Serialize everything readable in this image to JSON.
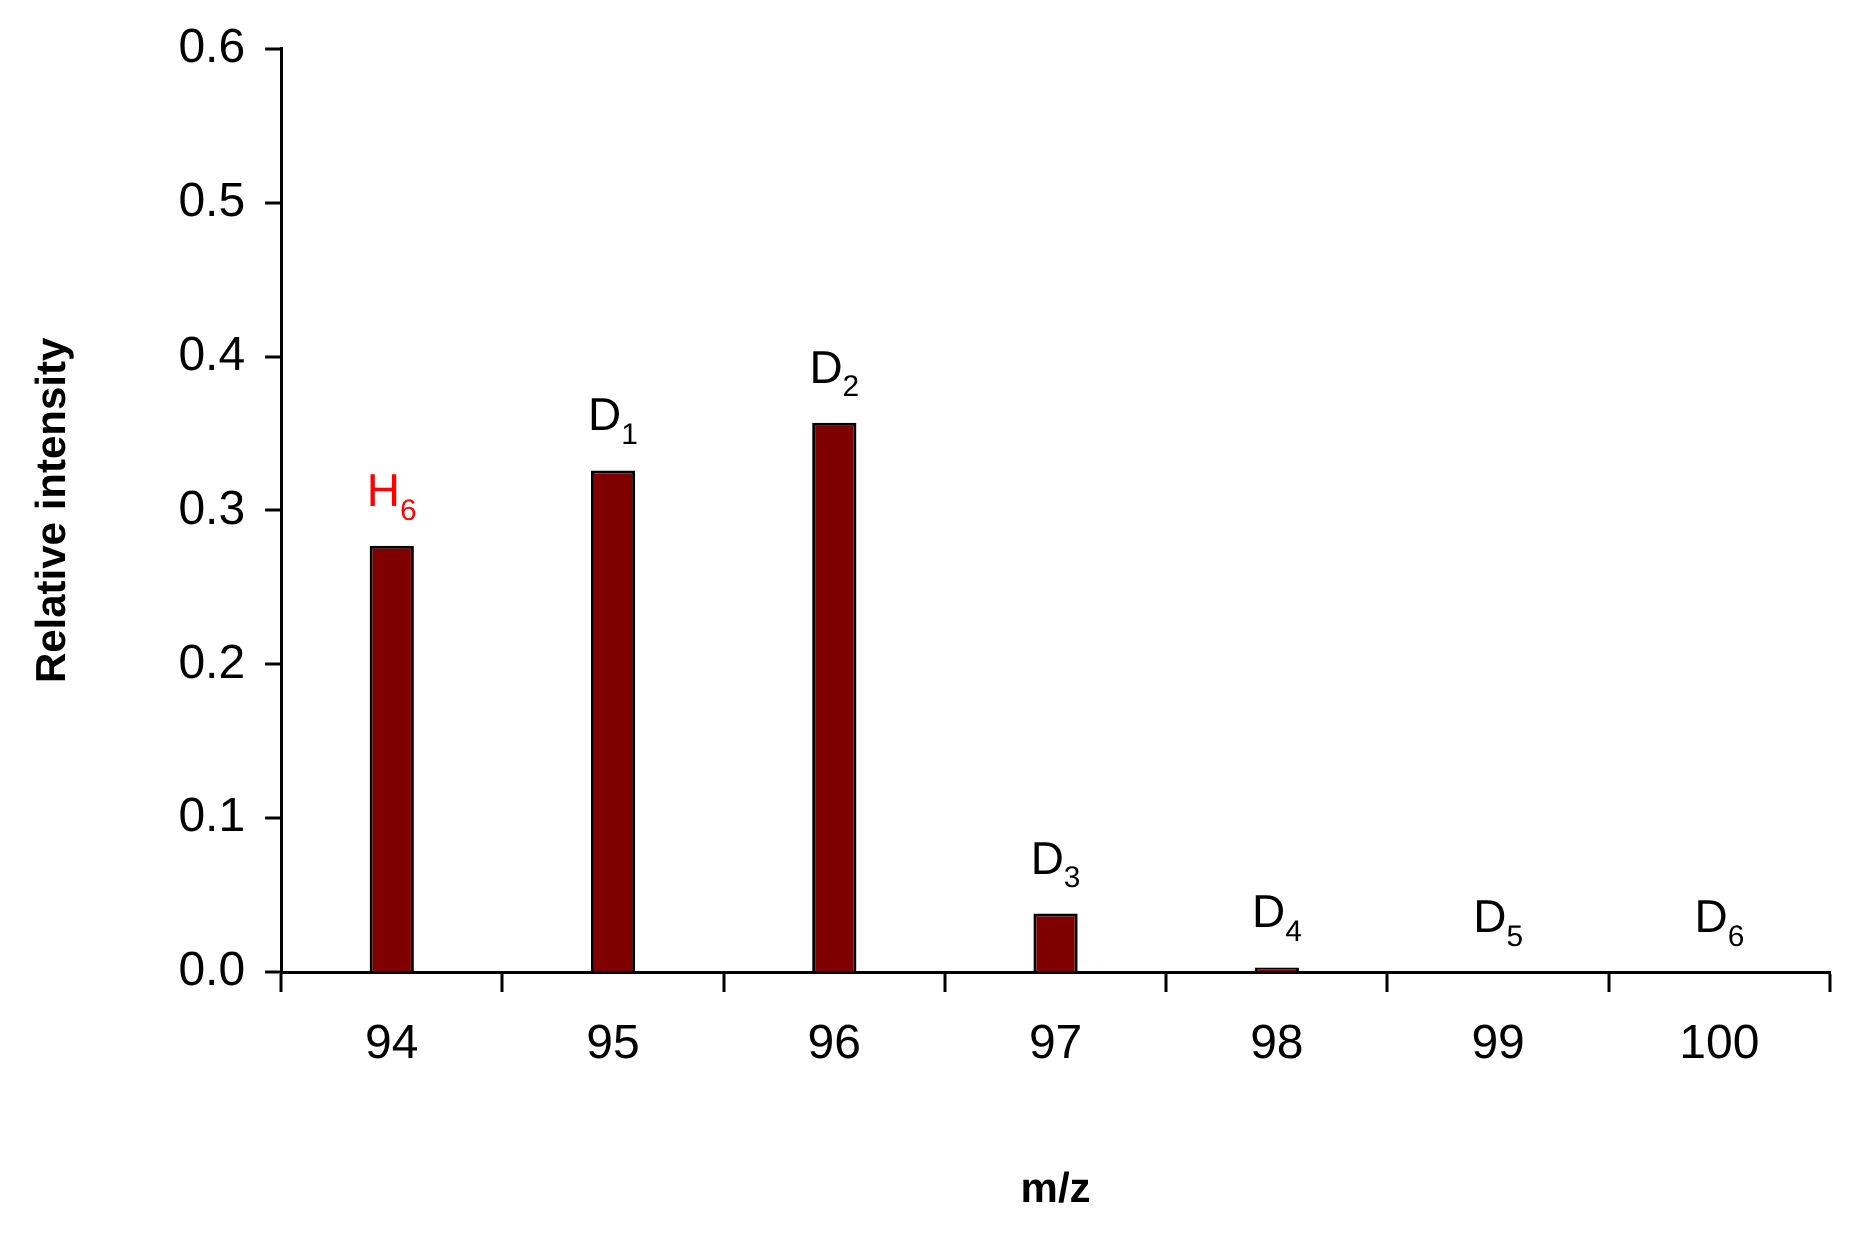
{
  "chart_data": {
    "type": "bar",
    "xlabel": "m/z",
    "ylabel": "Relative intensity",
    "categories": [
      "94",
      "95",
      "96",
      "97",
      "98",
      "99",
      "100"
    ],
    "values": [
      0.277,
      0.326,
      0.357,
      0.038,
      0.003,
      0,
      0
    ],
    "color": "#800000",
    "ylim": [
      0,
      0.6
    ],
    "yticks": [
      {
        "value": 0,
        "label": "0.0"
      },
      {
        "value": 0.1,
        "label": "0.1"
      },
      {
        "value": 0.2,
        "label": "0.2"
      },
      {
        "value": 0.3,
        "label": "0.3"
      },
      {
        "value": 0.4,
        "label": "0.4"
      },
      {
        "value": 0.5,
        "label": "0.5"
      },
      {
        "value": 0.6,
        "label": "0.6"
      }
    ],
    "grid": false,
    "legend": false,
    "annotations": [
      {
        "text": "H$_{6}$",
        "x": "94",
        "y": 0.277
      },
      {
        "text": "D$_{1}$",
        "x": "95",
        "y": 0.326
      },
      {
        "text": "D$_{2}$",
        "x": "96",
        "y": 0.357
      },
      {
        "text": "D$_{3}$",
        "x": "97",
        "y": 0.038
      },
      {
        "text": "D$_{4}$",
        "x": "98",
        "y": 0.003
      },
      {
        "text": "D$_{5}$",
        "x": "99",
        "y": 0
      },
      {
        "text": "D$_{6}$",
        "x": "100",
        "y": 0
      }
    ]
  }
}
